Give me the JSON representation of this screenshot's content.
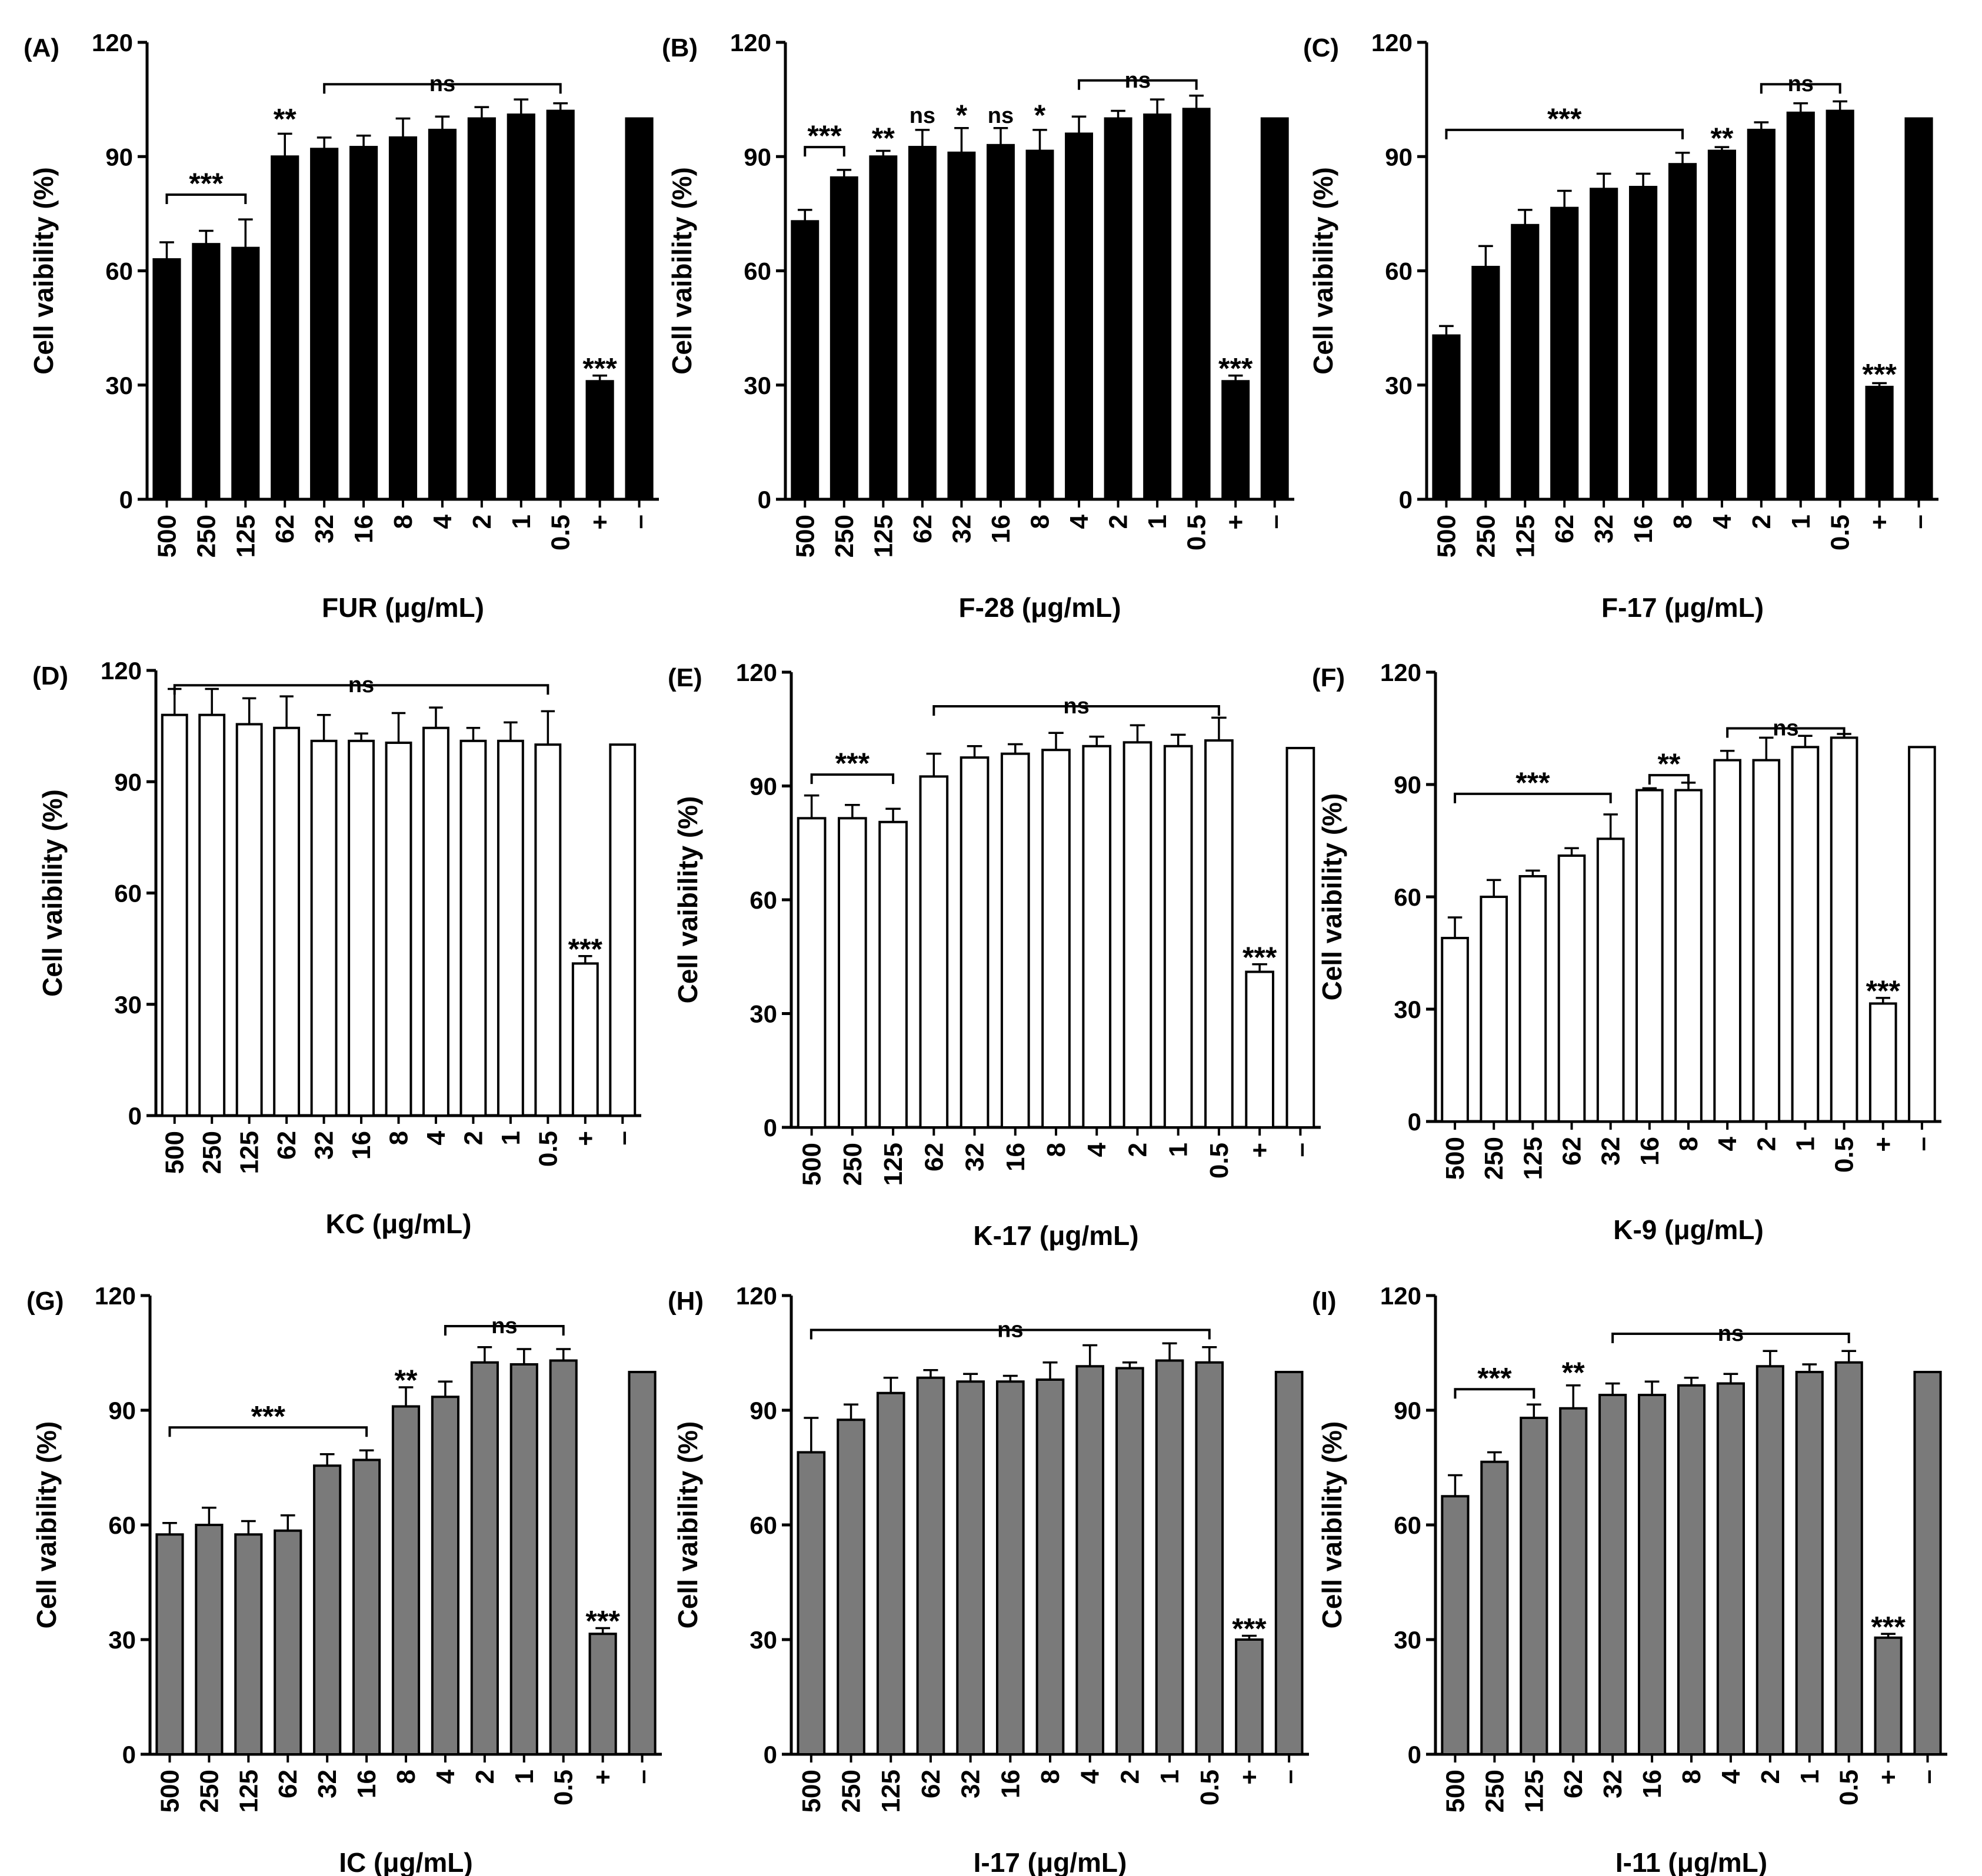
{
  "figure": {
    "ylabel_text": "Cell vaibility (%)",
    "y_ticks": [
      "0",
      "30",
      "60",
      "90",
      "120"
    ],
    "colors": {
      "black": "#000000",
      "white": "#ffffff",
      "gray": "#7a7a7a"
    }
  },
  "chart_data": [
    {
      "id": "A",
      "panel_label": "(A)",
      "type": "bar",
      "fill": "black",
      "xlabel": "FUR (μg/mL)",
      "ylabel": "Cell vaibility (%)",
      "ylim": [
        0,
        120
      ],
      "categories": [
        "500",
        "250",
        "125",
        "62",
        "32",
        "16",
        "8",
        "4",
        "2",
        "1",
        "0.5",
        "+",
        "–"
      ],
      "values": [
        63,
        67,
        66,
        90,
        92,
        92.5,
        95,
        97,
        100,
        101,
        102,
        31,
        100
      ],
      "errors": [
        4.5,
        3.5,
        7.5,
        6,
        3,
        3,
        5,
        3.5,
        3,
        4,
        2,
        1.5,
        0
      ],
      "annotations": [
        {
          "text": "***",
          "type": "bracket",
          "start": 0,
          "end": 2,
          "y": 80
        },
        {
          "text": "**",
          "type": "star",
          "index": 3,
          "y": 100
        },
        {
          "text": "ns",
          "type": "bracket",
          "start": 4,
          "end": 10,
          "y": 109
        },
        {
          "text": "***",
          "type": "star",
          "index": 11,
          "y": 34.5
        }
      ]
    },
    {
      "id": "B",
      "panel_label": "(B)",
      "type": "bar",
      "fill": "black",
      "xlabel": "F-28 (μg/mL)",
      "ylabel": "Cell vaibility (%)",
      "ylim": [
        0,
        120
      ],
      "categories": [
        "500",
        "250",
        "125",
        "62",
        "32",
        "16",
        "8",
        "4",
        "2",
        "1",
        "0.5",
        "+",
        "–"
      ],
      "values": [
        73,
        84.5,
        90,
        92.5,
        91,
        93,
        91.5,
        96,
        100,
        101,
        102.5,
        31,
        100
      ],
      "errors": [
        3,
        2,
        1.5,
        4.5,
        6.5,
        4.5,
        5.5,
        4.5,
        2,
        4,
        3.5,
        1.5,
        0
      ],
      "annotations": [
        {
          "text": "***",
          "type": "bracket",
          "start": 0,
          "end": 1,
          "y": 92.5
        },
        {
          "text": "**",
          "type": "star",
          "index": 2,
          "y": 95
        },
        {
          "text": "ns",
          "type": "star",
          "index": 3,
          "y": 101
        },
        {
          "text": "*",
          "type": "star",
          "index": 4,
          "y": 101
        },
        {
          "text": "ns",
          "type": "star",
          "index": 5,
          "y": 101
        },
        {
          "text": "*",
          "type": "star",
          "index": 6,
          "y": 101
        },
        {
          "text": "ns",
          "type": "bracket",
          "start": 7,
          "end": 10,
          "y": 110
        },
        {
          "text": "***",
          "type": "star",
          "index": 11,
          "y": 34.5
        }
      ]
    },
    {
      "id": "C",
      "panel_label": "(C)",
      "type": "bar",
      "fill": "black",
      "xlabel": "F-17 (μg/mL)",
      "ylabel": "Cell vaibility (%)",
      "ylim": [
        0,
        120
      ],
      "categories": [
        "500",
        "250",
        "125",
        "62",
        "32",
        "16",
        "8",
        "4",
        "2",
        "1",
        "0.5",
        "+",
        "–"
      ],
      "values": [
        43,
        61,
        72,
        76.5,
        81.5,
        82,
        88,
        91.5,
        97,
        101.5,
        102,
        29.5,
        100
      ],
      "errors": [
        2.5,
        5.5,
        4,
        4.5,
        4,
        3.5,
        3,
        1,
        2,
        2.5,
        2.5,
        1,
        0
      ],
      "annotations": [
        {
          "text": "***",
          "type": "bracket",
          "start": 0,
          "end": 6,
          "y": 97
        },
        {
          "text": "**",
          "type": "star",
          "index": 7,
          "y": 95
        },
        {
          "text": "ns",
          "type": "bracket",
          "start": 8,
          "end": 10,
          "y": 109
        },
        {
          "text": "***",
          "type": "star",
          "index": 11,
          "y": 33
        }
      ]
    },
    {
      "id": "D",
      "panel_label": "(D)",
      "type": "bar",
      "fill": "white",
      "xlabel": "KC (μg/mL)",
      "ylabel": "Cell vaibility (%)",
      "ylim": [
        0,
        120
      ],
      "categories": [
        "500",
        "250",
        "125",
        "62",
        "32",
        "16",
        "8",
        "4",
        "2",
        "1",
        "0.5",
        "+",
        "–"
      ],
      "values": [
        108,
        108,
        105.5,
        104.5,
        101,
        101,
        100.5,
        104.5,
        101,
        101,
        100,
        41,
        100
      ],
      "errors": [
        7,
        7,
        7,
        8.5,
        7,
        2,
        8,
        5.5,
        3.5,
        5,
        9,
        2,
        0
      ],
      "annotations": [
        {
          "text": "ns",
          "type": "bracket",
          "start": 0,
          "end": 10,
          "y": 116
        },
        {
          "text": "***",
          "type": "star",
          "index": 11,
          "y": 45
        }
      ]
    },
    {
      "id": "E",
      "panel_label": "(E)",
      "type": "bar",
      "fill": "white",
      "xlabel": "K-17 (μg/mL)",
      "ylabel": "Cell vaibility (%)",
      "ylim": [
        0,
        120
      ],
      "categories": [
        "500",
        "250",
        "125",
        "62",
        "32",
        "16",
        "8",
        "4",
        "2",
        "1",
        "0.5",
        "+",
        "–"
      ],
      "values": [
        81.5,
        81.5,
        80.5,
        92.5,
        97.5,
        98.5,
        99.5,
        100.5,
        101.5,
        100.5,
        102,
        41,
        100
      ],
      "errors": [
        6,
        3.5,
        3.5,
        6,
        3,
        2.5,
        4.5,
        2.5,
        4.5,
        3,
        6,
        2,
        0
      ],
      "annotations": [
        {
          "text": "***",
          "type": "bracket",
          "start": 0,
          "end": 2,
          "y": 93
        },
        {
          "text": "ns",
          "type": "bracket",
          "start": 3,
          "end": 10,
          "y": 111
        },
        {
          "text": "***",
          "type": "star",
          "index": 11,
          "y": 45
        }
      ]
    },
    {
      "id": "F",
      "panel_label": "(F)",
      "type": "bar",
      "fill": "white",
      "xlabel": "K-9 (μg/mL)",
      "ylabel": "Cell vaibility (%)",
      "ylim": [
        0,
        120
      ],
      "categories": [
        "500",
        "250",
        "125",
        "62",
        "32",
        "16",
        "8",
        "4",
        "2",
        "1",
        "0.5",
        "+",
        "–"
      ],
      "values": [
        49,
        60,
        65.5,
        71,
        75.5,
        88.5,
        88.5,
        96.5,
        96.5,
        100,
        102.5,
        31.5,
        100
      ],
      "errors": [
        5.5,
        4.5,
        1.5,
        2,
        6.5,
        0.5,
        2,
        2.5,
        6,
        3,
        1,
        1.5,
        0
      ],
      "annotations": [
        {
          "text": "***",
          "type": "bracket",
          "start": 0,
          "end": 4,
          "y": 87.5
        },
        {
          "text": "**",
          "type": "bracket",
          "start": 5,
          "end": 6,
          "y": 92.5
        },
        {
          "text": "ns",
          "type": "bracket",
          "start": 7,
          "end": 10,
          "y": 105
        },
        {
          "text": "***",
          "type": "star",
          "index": 11,
          "y": 35
        }
      ]
    },
    {
      "id": "G",
      "panel_label": "(G)",
      "type": "bar",
      "fill": "gray",
      "xlabel": "IC (μg/mL)",
      "ylabel": "Cell vaibility (%)",
      "ylim": [
        0,
        120
      ],
      "categories": [
        "500",
        "250",
        "125",
        "62",
        "32",
        "16",
        "8",
        "4",
        "2",
        "1",
        "0.5",
        "+",
        "–"
      ],
      "values": [
        57.5,
        60,
        57.5,
        58.5,
        75.5,
        77,
        91,
        93.5,
        102.5,
        102,
        103,
        31.5,
        100
      ],
      "errors": [
        3,
        4.5,
        3.5,
        4,
        3,
        2.5,
        5,
        4,
        4,
        4,
        3,
        1.5,
        0
      ],
      "annotations": [
        {
          "text": "***",
          "type": "bracket",
          "start": 0,
          "end": 5,
          "y": 85.5
        },
        {
          "text": "**",
          "type": "star",
          "index": 6,
          "y": 98
        },
        {
          "text": "ns",
          "type": "bracket",
          "start": 7,
          "end": 10,
          "y": 112
        },
        {
          "text": "***",
          "type": "star",
          "index": 11,
          "y": 35
        }
      ]
    },
    {
      "id": "H",
      "panel_label": "(H)",
      "type": "bar",
      "fill": "gray",
      "xlabel": "I-17 (μg/mL)",
      "ylabel": "Cell vaibility (%)",
      "ylim": [
        0,
        120
      ],
      "categories": [
        "500",
        "250",
        "125",
        "62",
        "32",
        "16",
        "8",
        "4",
        "2",
        "1",
        "0.5",
        "+",
        "–"
      ],
      "values": [
        79,
        87.5,
        94.5,
        98.5,
        97.5,
        97.5,
        98,
        101.5,
        101,
        103,
        102.5,
        30,
        100
      ],
      "errors": [
        9,
        4,
        4,
        2,
        2,
        1.5,
        4.5,
        5.5,
        1.5,
        4.5,
        4,
        1,
        0
      ],
      "annotations": [
        {
          "text": "ns",
          "type": "bracket",
          "start": 0,
          "end": 10,
          "y": 111
        },
        {
          "text": "***",
          "type": "star",
          "index": 11,
          "y": 33
        }
      ]
    },
    {
      "id": "I",
      "panel_label": "(I)",
      "type": "bar",
      "fill": "gray",
      "xlabel": "I-11 (μg/mL)",
      "ylabel": "Cell vaibility (%)",
      "ylim": [
        0,
        120
      ],
      "categories": [
        "500",
        "250",
        "125",
        "62",
        "32",
        "16",
        "8",
        "4",
        "2",
        "1",
        "0.5",
        "+",
        "–"
      ],
      "values": [
        67.5,
        76.5,
        88,
        90.5,
        94,
        94,
        96.5,
        97,
        101.5,
        100,
        102.5,
        30.5,
        100
      ],
      "errors": [
        5.5,
        2.5,
        3.5,
        6,
        3,
        3.5,
        2,
        2.5,
        4,
        2,
        3,
        1,
        0
      ],
      "annotations": [
        {
          "text": "***",
          "type": "bracket",
          "start": 0,
          "end": 2,
          "y": 95.5
        },
        {
          "text": "**",
          "type": "star",
          "index": 3,
          "y": 100
        },
        {
          "text": "ns",
          "type": "bracket",
          "start": 4,
          "end": 10,
          "y": 110
        },
        {
          "text": "***",
          "type": "star",
          "index": 11,
          "y": 33.5
        }
      ]
    }
  ]
}
